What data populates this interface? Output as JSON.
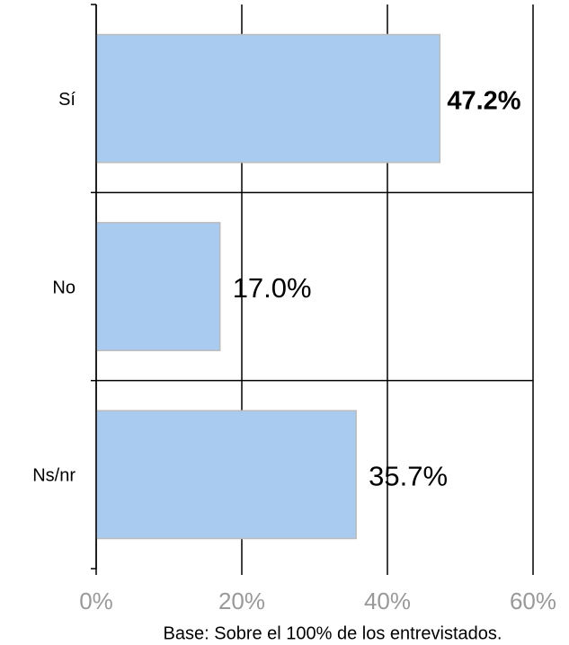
{
  "chart_data": {
    "type": "hbar",
    "categories": [
      "Sí",
      "No",
      "Ns/nr"
    ],
    "values": [
      47.2,
      17.0,
      35.7
    ],
    "value_labels": [
      "47.2%",
      "17.0%",
      "35.7%"
    ],
    "value_label_bold": [
      true,
      false,
      false
    ],
    "color": "#a9cbf0",
    "xlim": [
      0,
      60
    ],
    "xticks": [
      {
        "value": 0,
        "label": "0%"
      },
      {
        "value": 20,
        "label": "20%"
      },
      {
        "value": 40,
        "label": "40%"
      },
      {
        "value": 60,
        "label": "60%"
      }
    ],
    "grid": true,
    "footnote": "Base: Sobre el 100% de los entrevistados."
  }
}
